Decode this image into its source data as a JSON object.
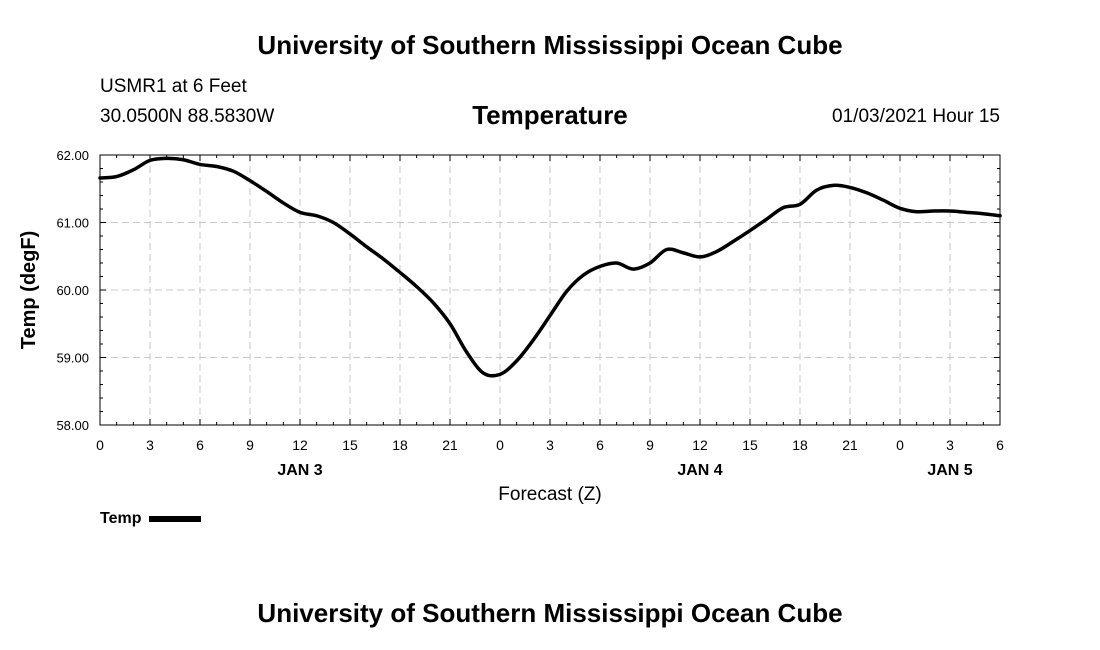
{
  "header": {
    "title": "University of Southern Mississippi Ocean Cube",
    "station": "USMR1 at 6 Feet",
    "coordinates": "30.0500N 88.5830W",
    "subtitle": "Temperature",
    "datetime": "01/03/2021 Hour 15"
  },
  "footer": {
    "title": "University of Southern Mississippi Ocean Cube"
  },
  "legend": {
    "label": "Temp",
    "color": "#000000"
  },
  "chart_data": {
    "type": "line",
    "title": "Temperature",
    "xlabel": "Forecast (Z)",
    "ylabel": "Temp (degF)",
    "xlim": [
      0,
      54
    ],
    "ylim": [
      58.0,
      62.0
    ],
    "grid": true,
    "x_ticks": [
      0,
      3,
      6,
      9,
      12,
      15,
      18,
      21,
      24,
      27,
      30,
      33,
      36,
      39,
      42,
      45,
      48,
      51,
      54
    ],
    "x_tick_labels": [
      "0",
      "3",
      "6",
      "9",
      "12",
      "15",
      "18",
      "21",
      "0",
      "3",
      "6",
      "9",
      "12",
      "15",
      "18",
      "21",
      "0",
      "3",
      "6"
    ],
    "y_ticks": [
      58.0,
      59.0,
      60.0,
      61.0,
      62.0
    ],
    "y_tick_labels": [
      "58.00",
      "59.00",
      "60.00",
      "61.00",
      "62.00"
    ],
    "date_labels": [
      {
        "x": 12,
        "label": "JAN 3"
      },
      {
        "x": 36,
        "label": "JAN 4"
      },
      {
        "x": 51,
        "label": "JAN 5"
      }
    ],
    "series": [
      {
        "name": "Temp",
        "color": "#000000",
        "x": [
          0,
          1,
          2,
          3,
          4,
          5,
          6,
          7,
          8,
          9,
          10,
          11,
          12,
          13,
          14,
          15,
          16,
          17,
          18,
          19,
          20,
          21,
          22,
          23,
          24,
          25,
          26,
          27,
          28,
          29,
          30,
          31,
          32,
          33,
          34,
          35,
          36,
          37,
          38,
          39,
          40,
          41,
          42,
          43,
          44,
          45,
          46,
          47,
          48,
          49,
          50,
          51,
          52,
          53,
          54
        ],
        "values": [
          61.66,
          61.68,
          61.78,
          61.92,
          61.95,
          61.93,
          61.86,
          61.83,
          61.76,
          61.62,
          61.46,
          61.29,
          61.15,
          61.1,
          61.0,
          60.83,
          60.64,
          60.46,
          60.26,
          60.05,
          59.81,
          59.5,
          59.08,
          58.77,
          58.75,
          58.95,
          59.26,
          59.62,
          59.98,
          60.22,
          60.35,
          60.4,
          60.31,
          60.4,
          60.6,
          60.55,
          60.49,
          60.57,
          60.72,
          60.88,
          61.05,
          61.22,
          61.27,
          61.48,
          61.55,
          61.52,
          61.44,
          61.33,
          61.21,
          61.16,
          61.17,
          61.17,
          61.15,
          61.13,
          61.1
        ]
      }
    ]
  }
}
